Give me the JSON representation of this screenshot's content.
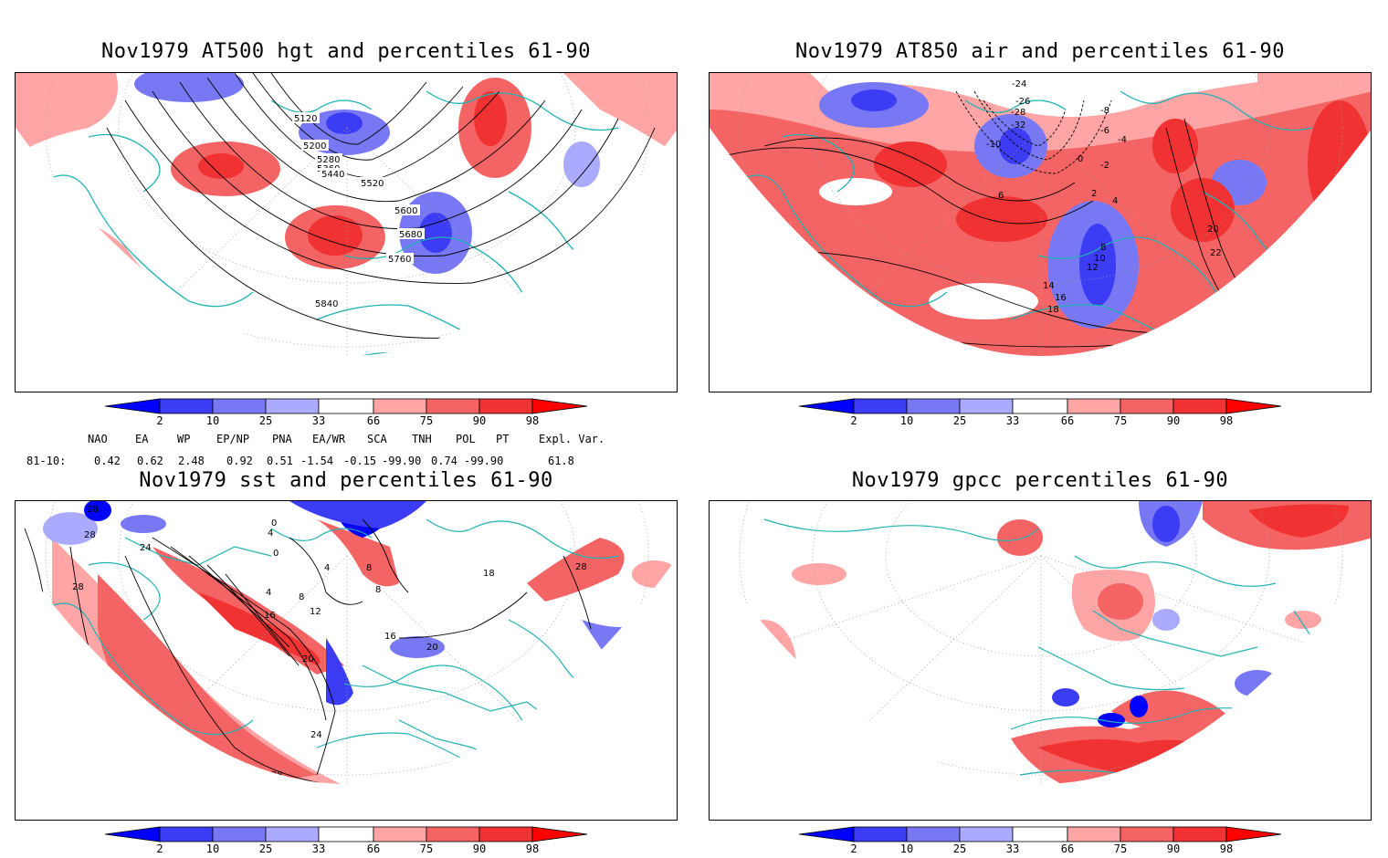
{
  "panels": [
    {
      "id": "hgt500",
      "title": "Nov1979 AT500 hgt and percentiles 61-90",
      "contour_labels": [
        "5120",
        "5200",
        "5280",
        "5360",
        "5440",
        "5520",
        "5600",
        "5680",
        "5760",
        "5840"
      ]
    },
    {
      "id": "air850",
      "title": "Nov1979 AT850 air and percentiles 61-90",
      "contour_labels": [
        "-24",
        "-26",
        "-28",
        "-32",
        "-10",
        "-8",
        "-6",
        "-4",
        "-2",
        "0",
        "2",
        "4",
        "6",
        "8",
        "10",
        "12",
        "14",
        "16",
        "18",
        "20",
        "22",
        "16",
        "18",
        "16",
        "14"
      ]
    },
    {
      "id": "sst",
      "title": "Nov1979 sst and percentiles 61-90",
      "contour_labels": [
        "28",
        "28",
        "24",
        "24",
        "28",
        "0",
        "4",
        "0",
        "4",
        "8",
        "4",
        "8",
        "12",
        "16",
        "20",
        "16",
        "20",
        "24",
        "28",
        "28",
        "28",
        "18",
        "8"
      ]
    },
    {
      "id": "gpcc",
      "title": "Nov1979 gpcc percentiles 61-90",
      "contour_labels": []
    }
  ],
  "colorbar": {
    "labels": [
      "2",
      "10",
      "25",
      "33",
      "66",
      "75",
      "90",
      "98"
    ],
    "colors": [
      "#0000ff",
      "#3c3cf5",
      "#7878f5",
      "#aaaaff",
      "#ffffff",
      "#ffa5a5",
      "#f56464",
      "#f03232",
      "#ff0000"
    ]
  },
  "indices": {
    "headers": [
      "NAO",
      "EA",
      "WP",
      "EP/NP",
      "PNA",
      "EA/WR",
      "SCA",
      "TNH",
      "POL",
      "PT",
      "Expl. Var."
    ],
    "row_label": "81-10:",
    "values": [
      "0.42",
      "0.62",
      "2.48",
      "0.92",
      "0.51",
      "-1.54",
      "-0.15",
      "-99.90",
      "0.74",
      "-99.90",
      "61.8"
    ]
  },
  "map_style": {
    "coast_color": "#20b2b2",
    "contour_color": "#000000",
    "grid_color": "#a0a0a0"
  }
}
